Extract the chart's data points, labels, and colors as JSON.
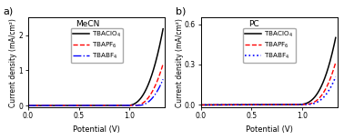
{
  "panel_a": {
    "title": "MeCN",
    "label": "a)",
    "ylim": [
      -0.05,
      2.5
    ],
    "xlim": [
      0.0,
      1.35
    ],
    "yticks": [
      0.0,
      1.0,
      2.0
    ],
    "xticks": [
      0.0,
      0.5,
      1.0
    ],
    "ylabel": "Current density (mA/cm²)",
    "xlabel": "Potential (V)",
    "curves": {
      "TBAClO4": {
        "color": "black",
        "linestyle": "solid",
        "lw": 1.1,
        "onset": 0.97,
        "scale": 28.0,
        "exp": 2.5
      },
      "TBAPF6": {
        "color": "red",
        "linestyle": "dashed",
        "lw": 1.0,
        "onset": 1.05,
        "scale": 22.0,
        "exp": 2.3
      },
      "TBABF4": {
        "color": "blue",
        "linestyle": "dashdot",
        "lw": 1.0,
        "onset": 1.08,
        "scale": 18.0,
        "exp": 2.3
      }
    }
  },
  "panel_b": {
    "title": "PC",
    "label": "b)",
    "ylim": [
      -0.02,
      0.65
    ],
    "xlim": [
      0.0,
      1.35
    ],
    "yticks": [
      0.0,
      0.3,
      0.6
    ],
    "xticks": [
      0.0,
      0.5,
      1.0
    ],
    "ylabel": "Current density (mA/cm²)",
    "xlabel": "Potential (V)",
    "curves": {
      "TBAClO4": {
        "color": "black",
        "linestyle": "solid",
        "lw": 1.1,
        "onset": 0.95,
        "scale": 7.5,
        "exp": 2.8
      },
      "TBAPF6": {
        "color": "red",
        "linestyle": "dashed",
        "lw": 1.0,
        "onset": 1.0,
        "scale": 7.0,
        "exp": 2.8
      },
      "TBABF4": {
        "color": "blue",
        "linestyle": "dotted",
        "lw": 1.2,
        "onset": 1.02,
        "scale": 5.5,
        "exp": 2.8
      }
    }
  },
  "legend_labels": [
    "TBAClO$_4$",
    "TBAPF$_6$",
    "TBABF$_4$"
  ],
  "background_color": "white",
  "figure_facecolor": "white"
}
